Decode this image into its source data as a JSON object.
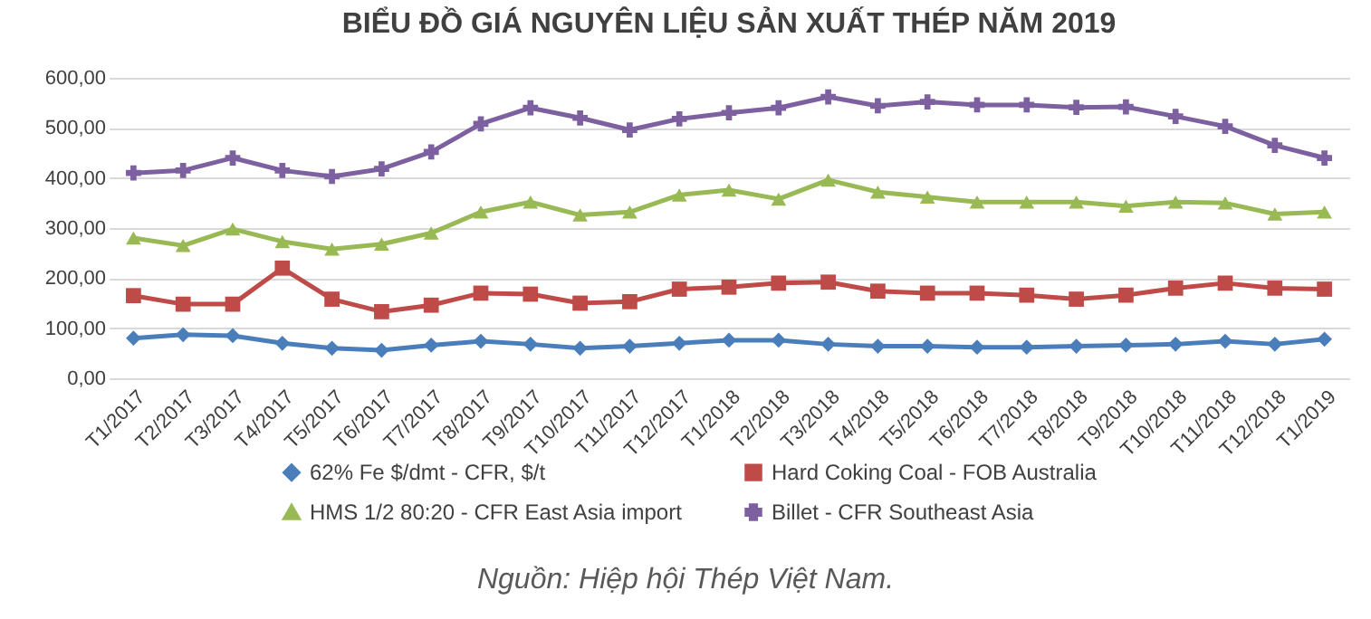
{
  "chart_data": {
    "type": "line",
    "title": "BIỂU ĐỒ GIÁ NGUYÊN LIỆU SẢN XUẤT THÉP NĂM 2019",
    "categories": [
      "T1/2017",
      "T2/2017",
      "T3/2017",
      "T4/2017",
      "T5/2017",
      "T6/2017",
      "T7/2017",
      "T8/2017",
      "T9/2017",
      "T10/2017",
      "T11/2017",
      "T12/2017",
      "T1/2018",
      "T2/2018",
      "T3/2018",
      "T4/2018",
      "T5/2018",
      "T6/2018",
      "T7/2018",
      "T8/2018",
      "T9/2018",
      "T10/2018",
      "T11/2018",
      "T12/2018",
      "T1/2019"
    ],
    "series": [
      {
        "name": "62% Fe $/dmt - CFR, $/t",
        "color": "#4a7ebb",
        "marker": "diamond",
        "values": [
          80,
          87,
          85,
          70,
          60,
          56,
          66,
          74,
          68,
          60,
          64,
          70,
          76,
          76,
          68,
          64,
          64,
          62,
          62,
          64,
          66,
          68,
          74,
          68,
          78
        ]
      },
      {
        "name": "Hard Coking Coal - FOB Australia",
        "color": "#be4b48",
        "marker": "square",
        "values": [
          165,
          148,
          148,
          220,
          158,
          133,
          146,
          170,
          168,
          150,
          153,
          178,
          182,
          190,
          192,
          174,
          170,
          170,
          166,
          158,
          166,
          180,
          190,
          180,
          178
        ]
      },
      {
        "name": "HMS 1/2 80:20 - CFR East Asia import",
        "color": "#98b954",
        "marker": "triangle",
        "values": [
          280,
          265,
          298,
          273,
          258,
          268,
          290,
          332,
          352,
          326,
          332,
          366,
          376,
          358,
          396,
          372,
          362,
          352,
          352,
          352,
          344,
          352,
          350,
          328,
          332
        ]
      },
      {
        "name": "Billet - CFR Southeast Asia",
        "color": "#7d60a0",
        "marker": "cross",
        "values": [
          410,
          415,
          440,
          415,
          403,
          418,
          452,
          508,
          540,
          520,
          496,
          518,
          530,
          540,
          562,
          544,
          552,
          546,
          546,
          541,
          542,
          523,
          503,
          465,
          440
        ]
      }
    ],
    "ylim": [
      0,
      600
    ],
    "yticks": [
      {
        "value": 0,
        "label": "0,00"
      },
      {
        "value": 100,
        "label": "100,00"
      },
      {
        "value": 200,
        "label": "200,00"
      },
      {
        "value": 300,
        "label": "300,00"
      },
      {
        "value": 400,
        "label": "400,00"
      },
      {
        "value": 500,
        "label": "500,00"
      },
      {
        "value": 600,
        "label": "600,00"
      }
    ],
    "grid": "y",
    "legend": "bottom",
    "line_style": "solid",
    "annotations": [
      "Nguồn: Hiệp hội Thép Việt Nam."
    ]
  }
}
